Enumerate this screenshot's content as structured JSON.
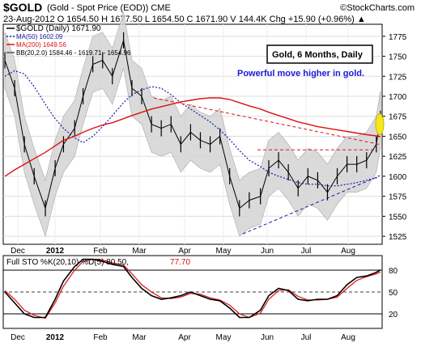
{
  "header": {
    "symbol": "$GOLD",
    "description": "(Gold - Spot Price (EOD)) CME",
    "brand": "©StockCharts.com",
    "quote": "23-Aug-2012   O 1654.50  H 1677.50  L 1654.50  C 1671.90  V 144.4K  Chg +15.90 (+0.96%) ▲"
  },
  "colors": {
    "price": "#000000",
    "ma50": "#1a1aa8",
    "ma200": "#dd1111",
    "band": "#d4d4d4",
    "highlight": "#f2e81e",
    "blue_text": "#1a1adb"
  },
  "chart_data": [
    {
      "type": "line",
      "title": "$GOLD (Daily) 1671.90",
      "legend": [
        "$GOLD (Daily) 1671.90",
        "MA(50) 1602.09",
        "MA(200) 1649.56",
        "BB(20,2.0) 1584.46 - 1619.71 - 1654.96"
      ],
      "annotations": [
        "Gold, 6 Months, Daily",
        "Powerful move higher in gold."
      ],
      "x_ticks": [
        "Dec",
        "2012",
        "Feb",
        "Mar",
        "Apr",
        "May",
        "Jun",
        "Jul",
        "Aug"
      ],
      "y_ticks": [
        1525,
        1550,
        1575,
        1600,
        1625,
        1650,
        1675,
        1700,
        1725,
        1750,
        1775
      ],
      "ylim": [
        1515,
        1790
      ],
      "x": [
        "2011-11-28",
        "2011-12-05",
        "2011-12-12",
        "2011-12-19",
        "2011-12-27",
        "2012-01-03",
        "2012-01-09",
        "2012-01-17",
        "2012-01-23",
        "2012-01-30",
        "2012-02-06",
        "2012-02-13",
        "2012-02-21",
        "2012-02-27",
        "2012-03-05",
        "2012-03-12",
        "2012-03-19",
        "2012-03-26",
        "2012-04-02",
        "2012-04-09",
        "2012-04-16",
        "2012-04-23",
        "2012-04-30",
        "2012-05-07",
        "2012-05-14",
        "2012-05-21",
        "2012-05-29",
        "2012-06-04",
        "2012-06-11",
        "2012-06-18",
        "2012-06-25",
        "2012-07-02",
        "2012-07-09",
        "2012-07-16",
        "2012-07-23",
        "2012-07-30",
        "2012-08-06",
        "2012-08-13",
        "2012-08-20",
        "2012-08-23"
      ],
      "series": [
        {
          "name": "$GOLD (Daily) 1671.90",
          "values": [
            1745,
            1710,
            1640,
            1600,
            1560,
            1610,
            1640,
            1660,
            1700,
            1740,
            1745,
            1725,
            1770,
            1710,
            1700,
            1665,
            1660,
            1665,
            1640,
            1655,
            1645,
            1640,
            1650,
            1600,
            1560,
            1570,
            1575,
            1610,
            1620,
            1605,
            1585,
            1600,
            1595,
            1580,
            1600,
            1615,
            1615,
            1620,
            1640,
            1671.9
          ]
        },
        {
          "name": "MA(50) 1602.09",
          "values": [
            1725,
            1732,
            1728,
            1712,
            1690,
            1672,
            1660,
            1648,
            1642,
            1650,
            1662,
            1676,
            1692,
            1702,
            1708,
            1712,
            1710,
            1702,
            1692,
            1684,
            1676,
            1668,
            1658,
            1646,
            1632,
            1620,
            1612,
            1605,
            1600,
            1596,
            1592,
            1590,
            1590,
            1588,
            1588,
            1590,
            1592,
            1595,
            1598,
            1602.09
          ]
        },
        {
          "name": "MA(200) 1649.56",
          "values": [
            1600,
            1608,
            1615,
            1622,
            1630,
            1638,
            1645,
            1650,
            1655,
            1660,
            1664,
            1667,
            1672,
            1676,
            1680,
            1684,
            1687,
            1690,
            1693,
            1695,
            1697,
            1698,
            1698,
            1696,
            1692,
            1688,
            1684,
            1680,
            1676,
            1672,
            1668,
            1665,
            1662,
            1660,
            1658,
            1656,
            1654,
            1652,
            1650.5,
            1649.56
          ]
        }
      ]
    },
    {
      "type": "line",
      "title": "Full STO %K(20,10) %D(5) 80.50, 77.70",
      "legend": [
        "Full STO %K(20,10) %D(5) 80.50,",
        "77.70"
      ],
      "x_ticks": [
        "Dec",
        "2012",
        "Feb",
        "Mar",
        "Apr",
        "May",
        "Jun",
        "Jul",
        "Aug"
      ],
      "y_ticks": [
        20,
        50,
        80
      ],
      "ylim": [
        0,
        100
      ],
      "series": [
        {
          "name": "%K",
          "values": [
            50,
            35,
            20,
            15,
            15,
            40,
            65,
            85,
            95,
            95,
            92,
            88,
            85,
            70,
            55,
            45,
            40,
            42,
            45,
            50,
            45,
            40,
            38,
            28,
            15,
            15,
            25,
            45,
            55,
            52,
            40,
            38,
            40,
            40,
            45,
            60,
            70,
            72,
            77,
            80.5
          ]
        },
        {
          "name": "%D",
          "values": [
            52,
            40,
            25,
            18,
            14,
            35,
            58,
            80,
            92,
            95,
            94,
            90,
            87,
            75,
            60,
            50,
            42,
            41,
            43,
            48,
            47,
            42,
            39,
            32,
            20,
            15,
            21,
            40,
            52,
            53,
            44,
            39,
            39,
            40,
            43,
            55,
            66,
            71,
            75,
            77.7
          ]
        }
      ]
    }
  ]
}
